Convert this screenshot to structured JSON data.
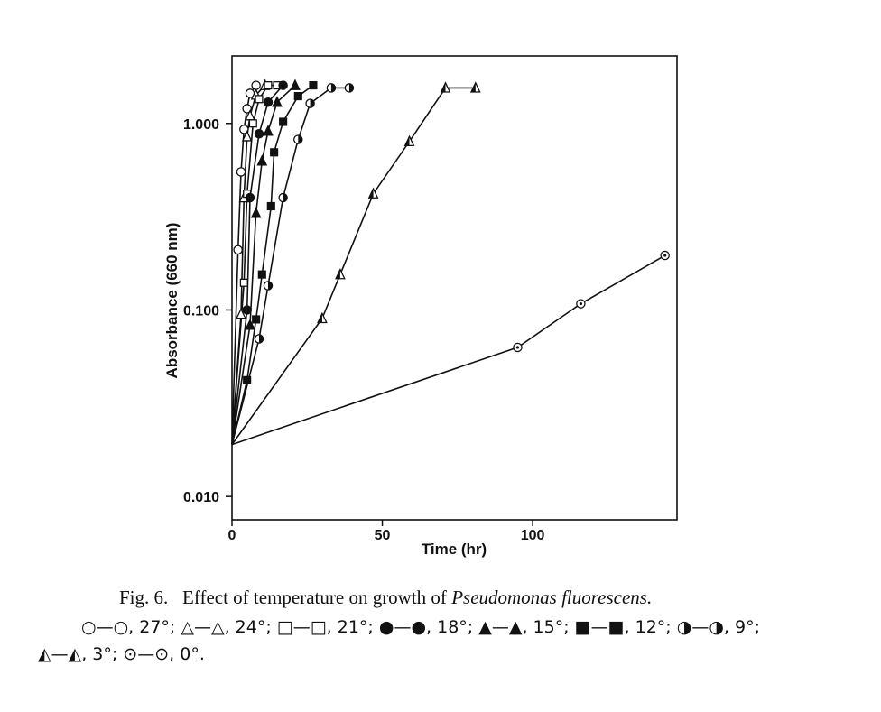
{
  "chart_data": {
    "type": "line",
    "y_scale": "log",
    "xlabel": "Time (hr)",
    "ylabel": "Absorbance (660 nm)",
    "xlim": [
      0,
      148
    ],
    "ylim": [
      0.0075,
      2.3
    ],
    "x_ticks": [
      0,
      50,
      100
    ],
    "x_tick_labels": [
      "0",
      "50",
      "100"
    ],
    "y_ticks": [
      0.01,
      0.1,
      1.0
    ],
    "y_tick_labels": [
      "0.010",
      "0.100",
      "1.000"
    ],
    "grid": false,
    "series": [
      {
        "name": "27°",
        "marker": "open-circle",
        "x": [
          0,
          2,
          3,
          4,
          5,
          6,
          8
        ],
        "y": [
          0.019,
          0.21,
          0.55,
          0.93,
          1.2,
          1.45,
          1.6
        ]
      },
      {
        "name": "24°",
        "marker": "open-triangle",
        "x": [
          0,
          3,
          4,
          5,
          6,
          8,
          11
        ],
        "y": [
          0.019,
          0.095,
          0.4,
          0.85,
          1.1,
          1.42,
          1.6
        ]
      },
      {
        "name": "21°",
        "marker": "open-square",
        "x": [
          0,
          4,
          5,
          7,
          9,
          12,
          15
        ],
        "y": [
          0.019,
          0.14,
          0.42,
          1.0,
          1.35,
          1.6,
          1.6
        ]
      },
      {
        "name": "18°",
        "marker": "filled-circle",
        "x": [
          0,
          5,
          6,
          9,
          12,
          17
        ],
        "y": [
          0.019,
          0.1,
          0.4,
          0.88,
          1.3,
          1.6
        ]
      },
      {
        "name": "15°",
        "marker": "filled-triangle",
        "x": [
          0,
          6,
          8,
          10,
          12,
          15,
          21
        ],
        "y": [
          0.019,
          0.083,
          0.33,
          0.63,
          0.91,
          1.3,
          1.6
        ]
      },
      {
        "name": "12°",
        "marker": "filled-square",
        "x": [
          0,
          5,
          8,
          10,
          13,
          14,
          17,
          22,
          27
        ],
        "y": [
          0.019,
          0.042,
          0.089,
          0.155,
          0.36,
          0.7,
          1.02,
          1.4,
          1.6
        ]
      },
      {
        "name": "9°",
        "marker": "half-circle",
        "x": [
          0,
          9,
          12,
          17,
          22,
          26,
          33,
          39
        ],
        "y": [
          0.019,
          0.07,
          0.135,
          0.4,
          0.82,
          1.28,
          1.55,
          1.55
        ]
      },
      {
        "name": "3°",
        "marker": "triangle-dot",
        "x": [
          0,
          30,
          36,
          47,
          59,
          71,
          81
        ],
        "y": [
          0.019,
          0.09,
          0.155,
          0.42,
          0.8,
          1.55,
          1.55
        ]
      },
      {
        "name": "0°",
        "marker": "circle-dot",
        "x": [
          0,
          95,
          116,
          144
        ],
        "y": [
          0.019,
          0.063,
          0.108,
          0.196
        ]
      }
    ]
  },
  "caption": {
    "fig_label": "Fig. 6.",
    "text_before_species": "Effect of temperature on growth of",
    "species": "Pseudomonas fluorescens.",
    "legend_line_2": "○—○, 27°; △—△, 24°; □—□, 21°; ●—●, 18°; ▲—▲, 15°; ■—■, 12°; ◑—◑, 9°;",
    "legend_line_3": "◭—◭, 3°; ⊙—⊙, 0°."
  }
}
